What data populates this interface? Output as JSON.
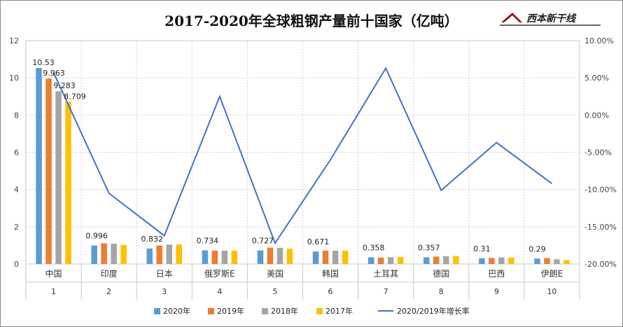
{
  "title": "2017-2020年全球粗钢产量前十国家（亿吨）",
  "logo": {
    "text": "西本新干线"
  },
  "colors": {
    "2020": "#5B9BD5",
    "2019": "#ED7D31",
    "2018": "#A5A5A5",
    "2017": "#FFC000",
    "rate": "#4472C4"
  },
  "chart_data": {
    "type": "bar",
    "title": "2017-2020年全球粗钢产量前十国家（亿吨）",
    "categories": [
      "中国",
      "印度",
      "日本",
      "俄罗斯E",
      "美国",
      "韩国",
      "土耳其",
      "德国",
      "巴西",
      "伊朗E"
    ],
    "rank": [
      "1",
      "2",
      "3",
      "4",
      "5",
      "6",
      "7",
      "8",
      "9",
      "10"
    ],
    "ylim": [
      0,
      12
    ],
    "y_ticks": [
      "0",
      "2",
      "4",
      "6",
      "8",
      "10",
      "12"
    ],
    "y2lim": [
      -0.2,
      0.1
    ],
    "y2_ticks": [
      "-20.00%",
      "-15.00%",
      "-10.00%",
      "-5.00%",
      "0.00%",
      "5.00%",
      "10.00%"
    ],
    "grid": true,
    "legend_position": "bottom",
    "series": [
      {
        "name": "2020年",
        "values": [
          10.53,
          0.996,
          0.832,
          0.734,
          0.727,
          0.671,
          0.358,
          0.357,
          0.31,
          0.29
        ]
      },
      {
        "name": "2019年",
        "values": [
          9.963,
          1.11,
          0.993,
          0.716,
          0.877,
          0.714,
          0.338,
          0.397,
          0.322,
          0.32
        ]
      },
      {
        "name": "2018年",
        "values": [
          9.283,
          1.09,
          1.04,
          0.72,
          0.87,
          0.72,
          0.37,
          0.42,
          0.35,
          0.25
        ]
      },
      {
        "name": "2017年",
        "values": [
          8.709,
          1.02,
          1.05,
          0.71,
          0.82,
          0.71,
          0.37,
          0.43,
          0.34,
          0.21
        ]
      }
    ],
    "line_series": {
      "name": "2020/2019年增长率",
      "axis": "right",
      "values": [
        0.057,
        -0.105,
        -0.162,
        0.025,
        -0.172,
        -0.06,
        0.063,
        -0.101,
        -0.037,
        -0.092
      ]
    },
    "data_labels": {
      "first_category": [
        "10.53",
        "9.963",
        "9.283",
        "8.709"
      ],
      "series_2020": [
        "10.53",
        "0.996",
        "0.832",
        "0.734",
        "0.727",
        "0.671",
        "0.358",
        "0.357",
        "0.31",
        "0.29"
      ]
    }
  }
}
